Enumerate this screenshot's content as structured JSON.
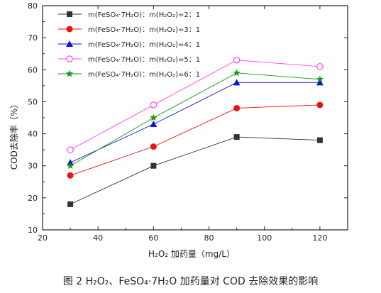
{
  "chart_data": {
    "type": "line",
    "xlabel": "H₂O₂ 加药量（mg/L）",
    "ylabel": "COD去除率（%）",
    "xlim": [
      20,
      130
    ],
    "ylim": [
      10,
      80
    ],
    "xticks": [
      20,
      40,
      60,
      80,
      100,
      120
    ],
    "yticks": [
      10,
      20,
      30,
      40,
      50,
      60,
      70,
      80
    ],
    "x": [
      30,
      60,
      90,
      120
    ],
    "series": [
      {
        "name": "m(FeSO₄·7H₂O)：m(H₂O₂)=2：1",
        "values": [
          18,
          30,
          39,
          38
        ],
        "color": "#333333",
        "marker": "square"
      },
      {
        "name": "m(FeSO₄·7H₂O)：m(H₂O₂)=3：1",
        "values": [
          27,
          36,
          48,
          49
        ],
        "color": "#ee1111",
        "marker": "circle"
      },
      {
        "name": "m(FeSO₄·7H₂O)：m(H₂O₂)=4：1",
        "values": [
          31,
          43,
          56,
          56
        ],
        "color": "#1111dd",
        "marker": "triangle"
      },
      {
        "name": "m(FeSO₄·7H₂O)：m(H₂O₂)=5：1",
        "values": [
          35,
          49,
          63,
          61
        ],
        "color": "#ff44ff",
        "marker": "circle-open"
      },
      {
        "name": "m(FeSO₄·7H₂O)：m(H₂O₂)=6：1",
        "values": [
          30,
          45,
          59,
          57
        ],
        "color": "#119911",
        "marker": "star"
      }
    ],
    "legend_position": "top-left",
    "grid": false
  },
  "caption": "图 2 H₂O₂、FeSO₄·7H₂O 加药量对 COD 去除效果的影响"
}
